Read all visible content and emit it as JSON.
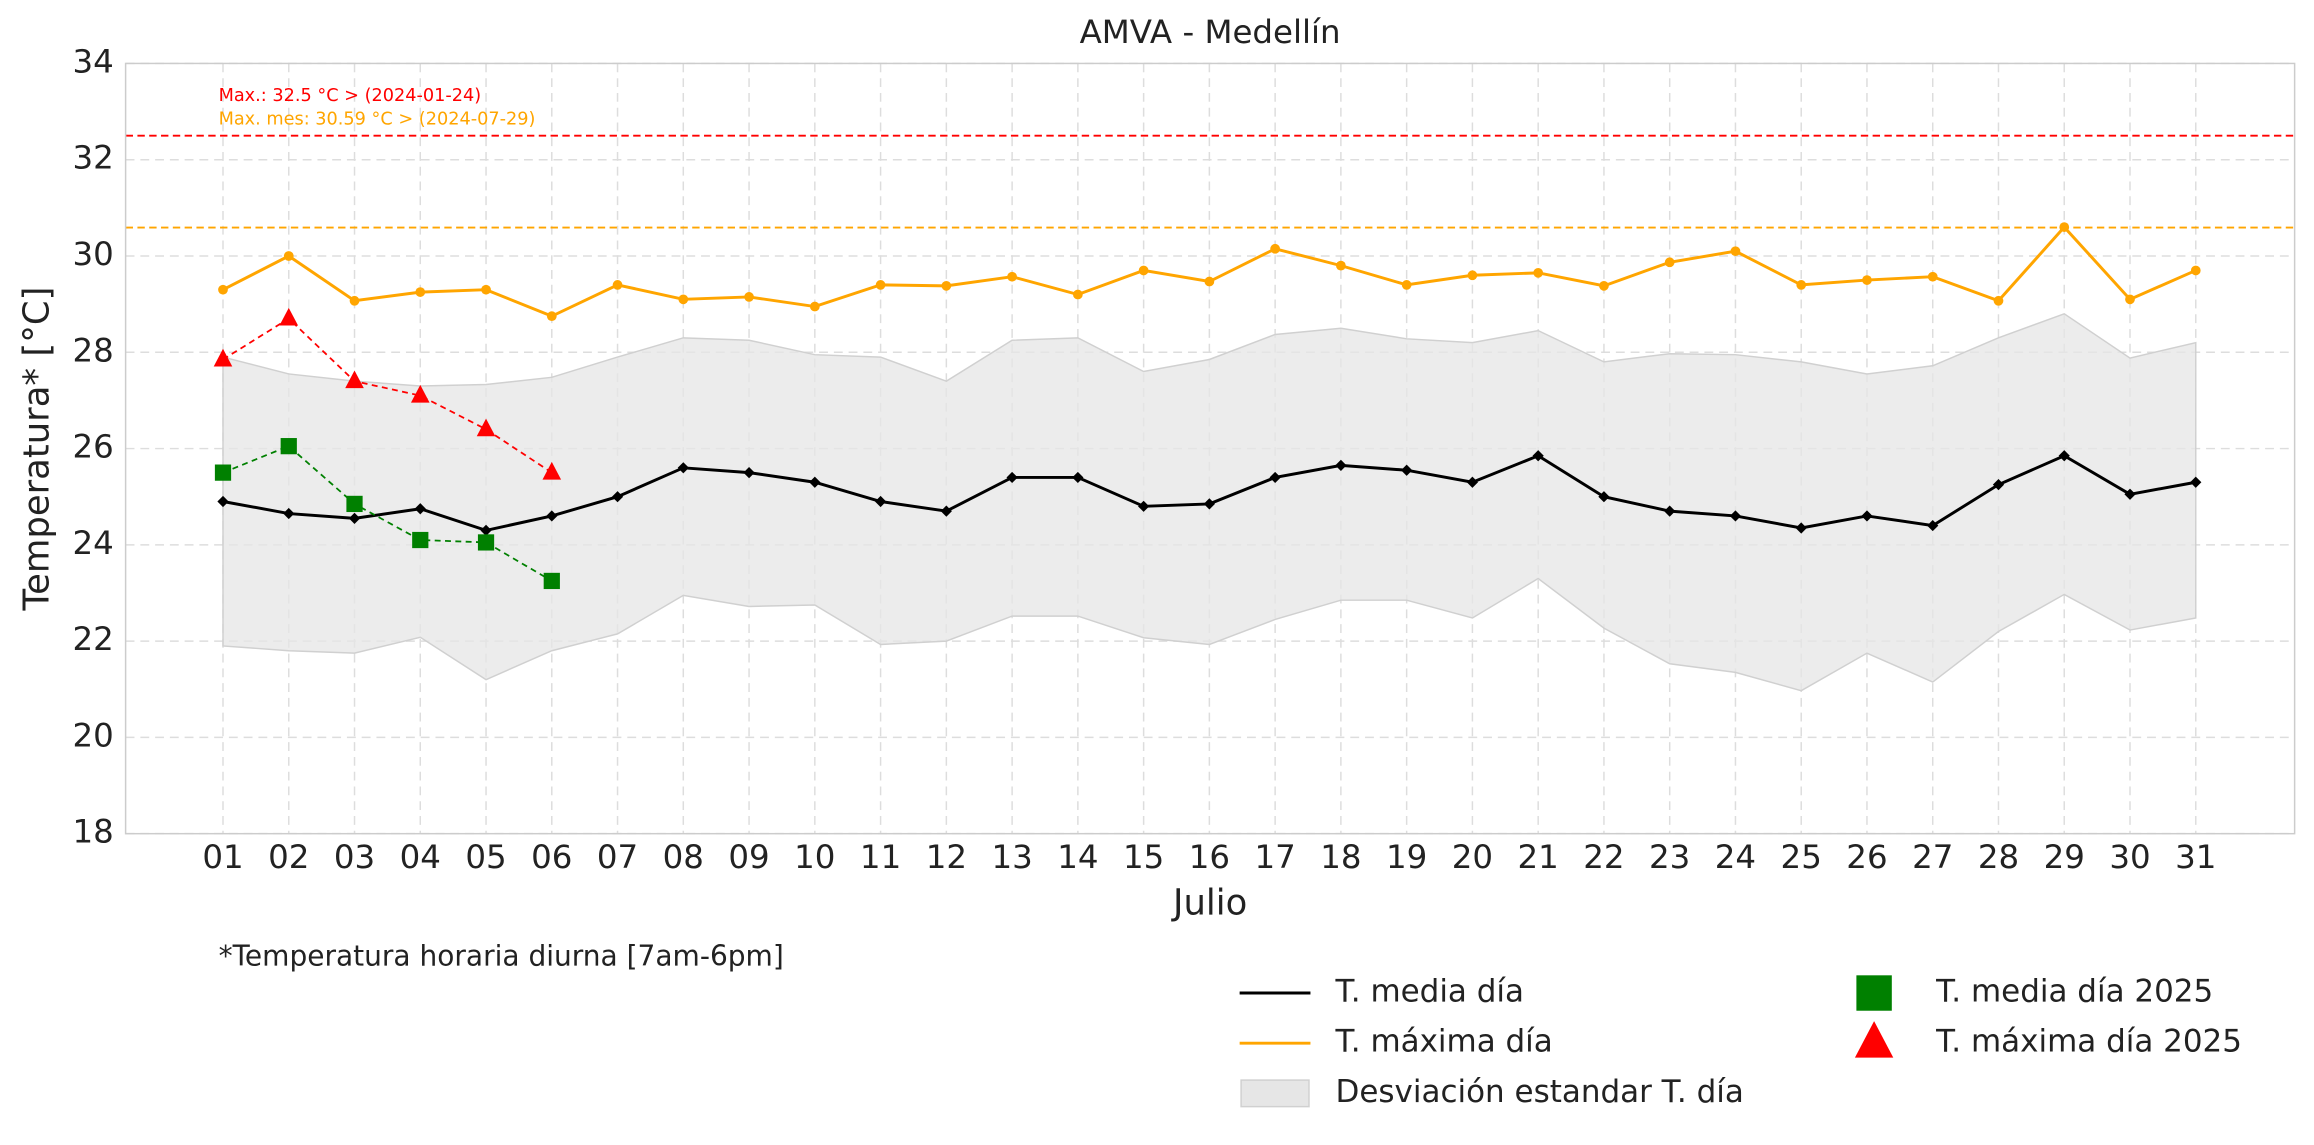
{
  "chart_data": {
    "type": "line",
    "title": "AMVA - Medellín",
    "x_label": "Julio",
    "y_label": "Temperatura* [°C]",
    "footnote": "*Temperatura horaria diurna [7am-6pm]",
    "categories": [
      "01",
      "02",
      "03",
      "04",
      "05",
      "06",
      "07",
      "08",
      "09",
      "10",
      "11",
      "12",
      "13",
      "14",
      "15",
      "16",
      "17",
      "18",
      "19",
      "20",
      "21",
      "22",
      "23",
      "24",
      "25",
      "26",
      "27",
      "28",
      "29",
      "30",
      "31"
    ],
    "ylim": [
      18,
      34
    ],
    "yticks": [
      18,
      20,
      22,
      24,
      26,
      28,
      30,
      32,
      34
    ],
    "grid": true,
    "band": {
      "name": "Desviación estandar T. día",
      "color": "#e6e6e6",
      "upper": [
        27.9,
        27.55,
        27.4,
        27.3,
        27.33,
        27.48,
        27.9,
        28.3,
        28.25,
        27.95,
        27.9,
        27.4,
        28.25,
        28.3,
        27.6,
        27.85,
        28.37,
        28.5,
        28.28,
        28.2,
        28.45,
        27.8,
        27.97,
        27.95,
        27.8,
        27.55,
        27.72,
        28.3,
        28.8,
        27.88,
        28.2
      ],
      "lower": [
        21.9,
        21.8,
        21.75,
        22.08,
        21.2,
        21.8,
        22.15,
        22.95,
        22.72,
        22.75,
        21.93,
        22.0,
        22.52,
        22.52,
        22.07,
        21.93,
        22.45,
        22.85,
        22.85,
        22.48,
        23.3,
        22.27,
        21.53,
        21.35,
        20.97,
        21.75,
        21.15,
        22.2,
        22.97,
        22.23,
        22.48
      ]
    },
    "series": [
      {
        "name": "T. media día",
        "color": "#000000",
        "marker": "diamond",
        "dashed": false,
        "values": [
          24.9,
          24.65,
          24.55,
          24.75,
          24.3,
          24.6,
          25.0,
          25.6,
          25.5,
          25.3,
          24.9,
          24.7,
          25.4,
          25.4,
          24.8,
          24.85,
          25.4,
          25.65,
          25.55,
          25.3,
          25.85,
          25.0,
          24.7,
          24.6,
          24.35,
          24.6,
          24.4,
          25.25,
          25.85,
          25.05,
          25.3
        ]
      },
      {
        "name": "T. máxima día",
        "color": "#ffa500",
        "marker": "circle",
        "dashed": false,
        "values": [
          29.3,
          30.0,
          29.07,
          29.25,
          29.3,
          28.75,
          29.4,
          29.1,
          29.15,
          28.95,
          29.4,
          29.38,
          29.57,
          29.2,
          29.7,
          29.47,
          30.15,
          29.8,
          29.4,
          29.6,
          29.65,
          29.38,
          29.87,
          30.1,
          29.4,
          29.5,
          29.57,
          29.07,
          30.6,
          29.1,
          29.7
        ]
      },
      {
        "name": "T. media día 2025",
        "color": "#008000",
        "marker": "square",
        "dashed": true,
        "values": [
          25.5,
          26.05,
          24.85,
          24.1,
          24.05,
          23.25,
          null,
          null,
          null,
          null,
          null,
          null,
          null,
          null,
          null,
          null,
          null,
          null,
          null,
          null,
          null,
          null,
          null,
          null,
          null,
          null,
          null,
          null,
          null,
          null,
          null
        ]
      },
      {
        "name": "T. máxima día 2025",
        "color": "#ff0000",
        "marker": "triangle",
        "dashed": true,
        "values": [
          27.85,
          28.7,
          27.4,
          27.1,
          26.4,
          25.5,
          null,
          null,
          null,
          null,
          null,
          null,
          null,
          null,
          null,
          null,
          null,
          null,
          null,
          null,
          null,
          null,
          null,
          null,
          null,
          null,
          null,
          null,
          null,
          null,
          null
        ]
      }
    ],
    "hlines": [
      {
        "value": 32.5,
        "color": "#ff0000",
        "label": "Max.: 32.5 °C  >  (2024-01-24)"
      },
      {
        "value": 30.59,
        "color": "#ffa500",
        "label": "Max. mes: 30.59 °C  >  (2024-07-29)"
      }
    ]
  }
}
